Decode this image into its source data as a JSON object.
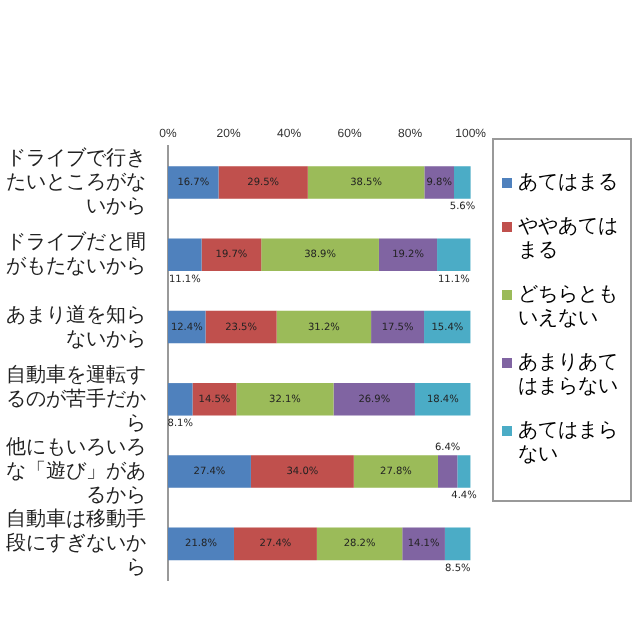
{
  "chart_data": {
    "type": "bar",
    "orientation": "horizontal",
    "stacked": true,
    "categories": [
      "ドライブで行きたいところがないから",
      "ドライブだと間がもたないから",
      "あまり道を知らないから",
      "自動車を運転するのが苦手だから",
      "他にもいろいろな「遊び」があるから",
      "自動車は移動手段にすぎないから"
    ],
    "series": [
      {
        "name": "あてはまる",
        "color": "#4f81bd",
        "values": [
          16.7,
          11.1,
          12.4,
          8.1,
          27.4,
          21.8
        ],
        "value_labels": [
          "16.7%",
          "11.1%",
          "12.4%",
          "8.1%",
          "27.4%",
          "21.8%"
        ]
      },
      {
        "name": "ややあてはまる",
        "color": "#c0504d",
        "values": [
          29.5,
          19.7,
          23.5,
          14.5,
          34.0,
          27.4
        ],
        "value_labels": [
          "29.5%",
          "19.7%",
          "23.5%",
          "14.5%",
          "34.0%",
          "27.4%"
        ]
      },
      {
        "name": "どちらともいえない",
        "color": "#9bbb59",
        "values": [
          38.5,
          38.9,
          31.2,
          32.1,
          27.8,
          28.2
        ],
        "value_labels": [
          "38.5%",
          "38.9%",
          "31.2%",
          "32.1%",
          "27.8%",
          "28.2%"
        ]
      },
      {
        "name": "あまりあてはまらない",
        "color": "#8064a2",
        "values": [
          9.8,
          19.2,
          17.5,
          26.9,
          6.4,
          14.1
        ],
        "value_labels": [
          "9.8%",
          "19.2%",
          "17.5%",
          "26.9%",
          "6.4%",
          "14.1%"
        ]
      },
      {
        "name": "あてはまらない",
        "color": "#4bacc6",
        "values": [
          5.6,
          11.1,
          15.4,
          18.4,
          4.4,
          8.5
        ],
        "value_labels": [
          "5.6%",
          "11.1%",
          "15.4%",
          "18.4%",
          "4.4%",
          "8.5%"
        ]
      }
    ],
    "xlim": [
      0,
      100
    ],
    "xticks": [
      {
        "value": 0,
        "label": "0%"
      },
      {
        "value": 20,
        "label": "20%"
      },
      {
        "value": 40,
        "label": "40%"
      },
      {
        "value": 60,
        "label": "60%"
      },
      {
        "value": 80,
        "label": "80%"
      },
      {
        "value": 100,
        "label": "100%"
      }
    ],
    "grid": false,
    "legend": "right"
  }
}
